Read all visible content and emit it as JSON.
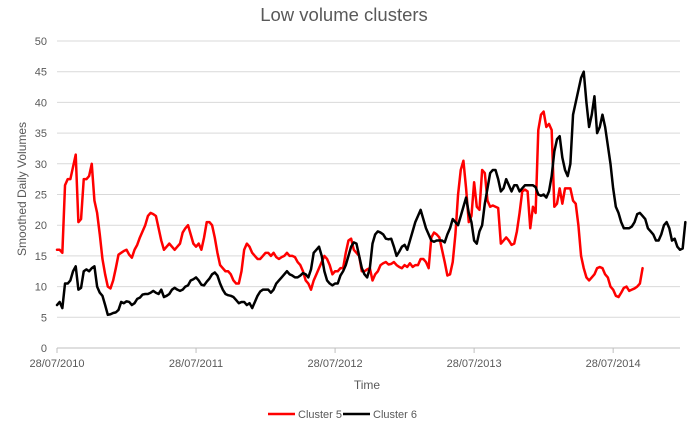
{
  "chart_data": {
    "type": "line",
    "title": "Low volume clusters",
    "xlabel": "Time",
    "ylabel": "Smoothed Daily Volumes",
    "ylim": [
      0,
      50
    ],
    "yticks": [
      0,
      5,
      10,
      15,
      20,
      25,
      30,
      35,
      40,
      45,
      50
    ],
    "x_tick_labels": [
      "28/07/2010",
      "28/07/2011",
      "28/07/2012",
      "28/07/2013",
      "28/07/2014"
    ],
    "x_tick_index": [
      0,
      52,
      104,
      156,
      208
    ],
    "x_range_index": [
      0,
      233
    ],
    "grid": "horizontal",
    "legend_position": "bottom",
    "series": [
      {
        "name": "Cluster 5",
        "color": "#ff0000",
        "values": [
          16,
          16,
          15.5,
          26.5,
          27.5,
          27.5,
          29.5,
          31.5,
          20.5,
          21,
          27.5,
          27.5,
          28,
          30,
          24,
          22,
          18.5,
          14.5,
          12,
          10,
          9.7,
          11,
          13,
          15.2,
          15.5,
          15.8,
          16,
          15.2,
          14.7,
          16,
          16.8,
          18,
          19,
          20,
          21.5,
          22,
          21.8,
          21.5,
          19.5,
          17.5,
          16,
          16.5,
          17,
          16.5,
          16,
          16.5,
          17,
          18.8,
          19.5,
          20,
          18.5,
          17,
          16.5,
          17,
          16,
          18,
          20.5,
          20.5,
          20,
          18,
          15.5,
          13.5,
          13,
          12.5,
          12.5,
          12,
          11,
          10.5,
          10.5,
          12.5,
          16,
          17,
          16.5,
          15.5,
          15,
          14.5,
          14.5,
          15,
          15.5,
          15.5,
          15,
          15.5,
          14.8,
          14.5,
          14.8,
          15,
          15.5,
          15,
          15,
          14.8,
          14,
          13.5,
          12.5,
          11,
          10.5,
          9.5,
          11,
          12,
          13,
          14,
          15,
          14.5,
          13.5,
          12,
          12.5,
          12.5,
          13,
          13,
          15.5,
          17.5,
          17.8,
          16,
          15.5,
          15,
          12.5,
          12.5,
          12.8,
          13,
          11,
          12,
          12.5,
          13.5,
          13.8,
          14,
          13.6,
          13.7,
          14,
          13.5,
          13.2,
          13,
          13.5,
          13.2,
          13.8,
          13.2,
          13.5,
          13.5,
          14.5,
          14.5,
          14,
          13,
          18,
          18.8,
          18.5,
          18,
          16,
          14,
          11.8,
          12,
          14,
          18.5,
          25,
          29,
          30.5,
          26,
          20.5,
          21.5,
          27,
          23,
          22.5,
          29,
          28.5,
          24,
          23,
          23.2,
          23,
          22.8,
          17,
          17.5,
          18,
          17.5,
          16.8,
          17,
          19,
          22,
          25.5,
          25.8,
          25.5,
          19.5,
          23,
          22,
          35.5,
          38,
          38.5,
          36,
          36.5,
          35.5,
          23,
          23.5,
          26,
          23.5,
          26,
          26,
          26,
          24,
          23.5,
          20,
          15,
          13,
          11.5,
          11,
          11.5,
          12,
          13,
          13.2,
          13,
          12,
          11.5,
          10,
          9.5,
          8.5,
          8.3,
          9,
          9.8,
          10,
          9.3,
          9.5,
          9.7,
          10,
          10.5,
          13
        ],
        "data_labels": []
      },
      {
        "name": "Cluster 6",
        "color": "#000000",
        "values": [
          7,
          7.5,
          6.5,
          10.5,
          10.5,
          11,
          12.5,
          13.3,
          9.5,
          9.8,
          12.5,
          12.8,
          12.5,
          13,
          13.3,
          10,
          9,
          8.5,
          7,
          5.4,
          5.5,
          5.7,
          5.8,
          6.2,
          7.5,
          7.3,
          7.6,
          7.5,
          7,
          7.3,
          8,
          8.2,
          8.7,
          8.8,
          8.8,
          9,
          9.3,
          9,
          8.8,
          9.5,
          8.3,
          8.5,
          8.8,
          9.5,
          9.8,
          9.5,
          9.3,
          9.5,
          10,
          10.2,
          11,
          11.2,
          11.5,
          11,
          10.3,
          10.2,
          10.8,
          11.3,
          12,
          12.3,
          11.8,
          10.5,
          9.5,
          8.8,
          8.6,
          8.5,
          8.3,
          7.8,
          7.3,
          7.5,
          7.5,
          7,
          7.3,
          6.5,
          7.5,
          8.5,
          9.2,
          9.5,
          9.5,
          9.5,
          9,
          9.5,
          10.5,
          11,
          11.5,
          12,
          12.5,
          12,
          11.8,
          11.5,
          11.5,
          11.8,
          12.2,
          12,
          11.5,
          12.8,
          15.5,
          16,
          16.5,
          15,
          12.5,
          11,
          10.5,
          10.2,
          10.5,
          10.5,
          11.8,
          12.5,
          13.5,
          15,
          16.5,
          17.2,
          17,
          15,
          13,
          12,
          11.5,
          13,
          17,
          18.5,
          19,
          18.8,
          18.5,
          17.8,
          17.7,
          17.8,
          16.5,
          15,
          15.7,
          16.5,
          16.8,
          16,
          17.5,
          19,
          20.5,
          21.5,
          22.5,
          21,
          19.5,
          18.5,
          17.5,
          17.3,
          17.5,
          17.5,
          17.5,
          17.2,
          18.5,
          19.5,
          21,
          20.5,
          20,
          21.5,
          23,
          24.5,
          22,
          20.5,
          17.5,
          17,
          19,
          20,
          23.5,
          26,
          28.5,
          29,
          29,
          27.5,
          25.5,
          26,
          27.5,
          26.5,
          25.5,
          26.5,
          26.5,
          25.5,
          26,
          26.5,
          26.5,
          26.5,
          26.5,
          26.2,
          25,
          24.8,
          25,
          24.5,
          25.5,
          28,
          32,
          34,
          34.5,
          31,
          29,
          28,
          30,
          38,
          40,
          42,
          44,
          45,
          40,
          36,
          38,
          41,
          35,
          36,
          38,
          36,
          33,
          30,
          26,
          23,
          22,
          20.5,
          19.5,
          19.5,
          19.5,
          19.8,
          20.5,
          21.8,
          22,
          21.5,
          21,
          19.5,
          19,
          18.5,
          17.5,
          17.5,
          18.5,
          20,
          20.5,
          19.5,
          17.5,
          17.8,
          16.5,
          16,
          16.2,
          20.5
        ]
      }
    ]
  }
}
